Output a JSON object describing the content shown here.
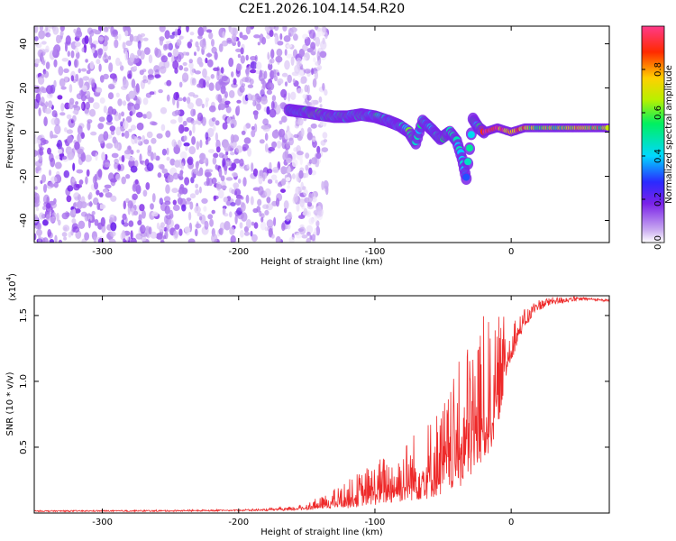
{
  "title": "C2E1.2026.104.14.54.R20",
  "colors": {
    "spectrum_low": "#7b2ff0",
    "spectrum_mid": "#00c8ff",
    "spectrum_high": "#ff1a1a",
    "snr_line": "#ee2a2a",
    "axis": "#000000"
  },
  "chart_data": [
    {
      "type": "heatmap",
      "title": "C2E1.2026.104.14.54.R20",
      "xlabel": "Height of straight line (km)",
      "ylabel": "Frequency (Hz)",
      "xlim": [
        -350,
        72
      ],
      "ylim": [
        -50,
        48
      ],
      "xticks": [
        -300,
        -200,
        -100,
        0
      ],
      "xtick_labels": [
        "-300",
        "-200",
        "-100",
        "0"
      ],
      "yticks": [
        -40,
        -20,
        0,
        20,
        40
      ],
      "ytick_labels": [
        "-40",
        "-20",
        "0",
        "20",
        "40"
      ],
      "colorbar": {
        "label": "Normalized spectral amplitude",
        "range": [
          0,
          1
        ],
        "ticks": [
          0.0,
          0.2,
          0.4,
          0.6,
          0.8
        ],
        "tick_labels": [
          "0.0",
          "0.2",
          "0.4",
          "0.6",
          "0.8"
        ]
      },
      "noise_region": {
        "x_range": [
          -350,
          -145
        ],
        "f_range": [
          -50,
          48
        ],
        "amplitude_range": [
          0.02,
          0.12
        ]
      },
      "signal_track": [
        {
          "x": -163,
          "f": 10,
          "amp": 0.45
        },
        {
          "x": -150,
          "f": 9,
          "amp": 0.5
        },
        {
          "x": -140,
          "f": 8,
          "amp": 0.55
        },
        {
          "x": -130,
          "f": 7,
          "amp": 0.5
        },
        {
          "x": -120,
          "f": 7,
          "amp": 0.5
        },
        {
          "x": -110,
          "f": 8,
          "amp": 0.45
        },
        {
          "x": -100,
          "f": 7,
          "amp": 0.5
        },
        {
          "x": -90,
          "f": 5,
          "amp": 0.45
        },
        {
          "x": -82,
          "f": 3,
          "amp": 0.45
        },
        {
          "x": -75,
          "f": 0,
          "amp": 0.55
        },
        {
          "x": -70,
          "f": -5,
          "amp": 0.5
        },
        {
          "x": -65,
          "f": 5,
          "amp": 0.5
        },
        {
          "x": -58,
          "f": 1,
          "amp": 0.45
        },
        {
          "x": -52,
          "f": -3,
          "amp": 0.5
        },
        {
          "x": -45,
          "f": 0,
          "amp": 0.5
        },
        {
          "x": -40,
          "f": -4,
          "amp": 0.45
        },
        {
          "x": -36,
          "f": -12,
          "amp": 0.45
        },
        {
          "x": -33,
          "f": -21,
          "amp": 0.4
        },
        {
          "x": -28,
          "f": 6,
          "amp": 0.5
        },
        {
          "x": -24,
          "f": 2,
          "amp": 0.5
        },
        {
          "x": -20,
          "f": 0,
          "amp": 0.9
        },
        {
          "x": -10,
          "f": 2,
          "amp": 0.95
        },
        {
          "x": 0,
          "f": 0,
          "amp": 0.85
        },
        {
          "x": 10,
          "f": 2,
          "amp": 0.8
        },
        {
          "x": 20,
          "f": 2,
          "amp": 0.6
        },
        {
          "x": 40,
          "f": 2,
          "amp": 0.65
        },
        {
          "x": 55,
          "f": 2,
          "amp": 0.75
        },
        {
          "x": 72,
          "f": 2,
          "amp": 0.7
        }
      ]
    },
    {
      "type": "line",
      "series": [
        {
          "name": "SNR"
        }
      ],
      "xlabel": "Height of straight line (km)",
      "ylabel": "SNR (10 * v/v)",
      "y_multiplier": "(x10",
      "y_multiplier_exp": "4",
      "y_multiplier_close": ")",
      "xlim": [
        -350,
        72
      ],
      "ylim": [
        0,
        1.65
      ],
      "xticks": [
        -300,
        -200,
        -100,
        0
      ],
      "xtick_labels": [
        "-300",
        "-200",
        "-100",
        "0"
      ],
      "yticks": [
        0.5,
        1.0,
        1.5
      ],
      "ytick_labels": [
        "0.5",
        "1.0",
        "1.5"
      ],
      "envelope": {
        "x": [
          -350,
          -250,
          -180,
          -160,
          -140,
          -120,
          -100,
          -80,
          -60,
          -45,
          -35,
          -25,
          -18,
          -12,
          -8,
          -5,
          0,
          5,
          10,
          20,
          30,
          40,
          50,
          60,
          72
        ],
        "baseline": [
          0.015,
          0.015,
          0.02,
          0.02,
          0.03,
          0.04,
          0.06,
          0.08,
          0.1,
          0.15,
          0.2,
          0.3,
          0.4,
          0.55,
          0.75,
          0.95,
          1.15,
          1.3,
          1.42,
          1.5,
          1.55,
          1.58,
          1.6,
          1.61,
          1.6
        ],
        "spike_top": [
          0.015,
          0.02,
          0.03,
          0.05,
          0.12,
          0.25,
          0.4,
          0.55,
          0.75,
          0.95,
          1.25,
          1.55,
          1.5,
          1.4,
          1.55,
          1.5,
          1.55,
          1.5,
          1.55,
          1.62,
          1.64,
          1.64,
          1.64,
          1.63,
          1.62
        ]
      }
    }
  ]
}
